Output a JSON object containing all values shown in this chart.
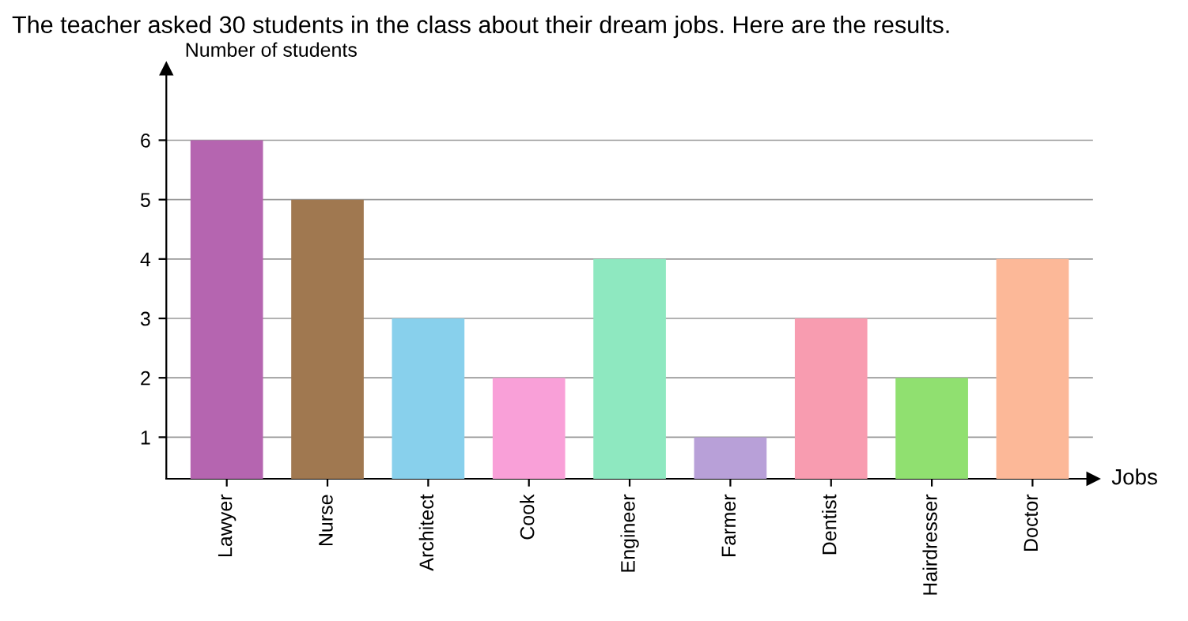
{
  "chart_data": {
    "type": "bar",
    "title": "The teacher asked 30 students in the class about their dream jobs. Here are the results.",
    "xlabel": "Jobs",
    "ylabel": "Number of students",
    "categories": [
      "Lawyer",
      "Nurse",
      "Architect",
      "Cook",
      "Engineer",
      "Farmer",
      "Dentist",
      "Hairdresser",
      "Doctor"
    ],
    "values": [
      6,
      5,
      3,
      2,
      4,
      1,
      3,
      2,
      4
    ],
    "colors": [
      "#b565b0",
      "#a07850",
      "#88d0ec",
      "#f9a0d8",
      "#8ee8c0",
      "#b8a0d8",
      "#f89cb0",
      "#90e070",
      "#fcb898"
    ],
    "ylim": [
      0.3,
      7.2
    ],
    "yticks": [
      1,
      2,
      3,
      4,
      5,
      6
    ],
    "grid": "y"
  }
}
